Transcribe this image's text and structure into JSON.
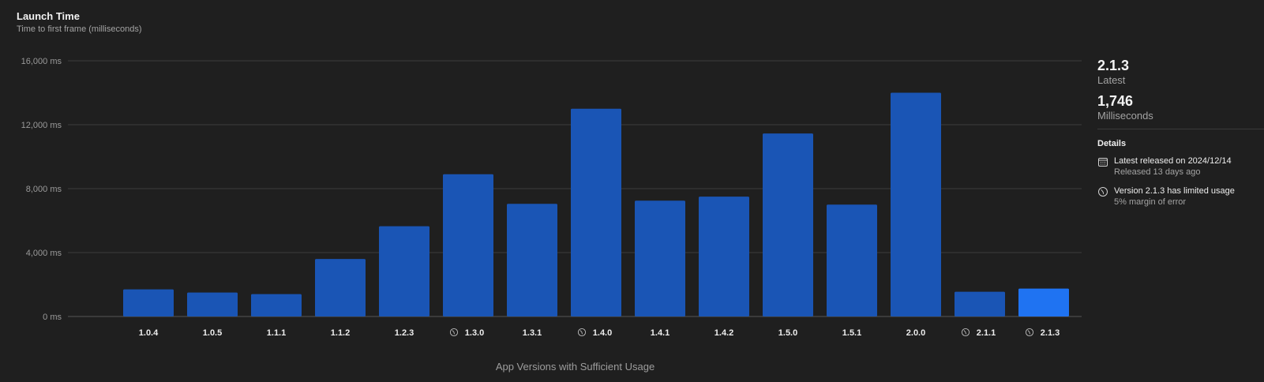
{
  "header": {
    "title": "Launch Time",
    "subtitle": "Time to first frame (milliseconds)"
  },
  "summary": {
    "version": "2.1.3",
    "version_label": "Latest",
    "value": "1,746",
    "value_label": "Milliseconds"
  },
  "details": {
    "heading": "Details",
    "items": [
      {
        "icon": "calendar-icon",
        "title": "Latest released on 2024/12/14",
        "subtitle": "Released 13 days ago"
      },
      {
        "icon": "limited-usage-icon",
        "title": "Version 2.1.3 has limited usage",
        "subtitle": "5% margin of error"
      }
    ]
  },
  "colors": {
    "bar": "#1a55b5",
    "bar_highlight": "#1f73f2",
    "background": "#1f1f1f",
    "grid": "#3d3d3d"
  },
  "chart_data": {
    "type": "bar",
    "title": "Launch Time",
    "subtitle": "Time to first frame (milliseconds)",
    "xlabel": "App Versions with Sufficient Usage",
    "ylabel": "",
    "ylim": [
      0,
      16000
    ],
    "yticks": [
      0,
      4000,
      8000,
      12000,
      16000
    ],
    "ytick_labels": [
      "0 ms",
      "4,000 ms",
      "8,000 ms",
      "12,000 ms",
      "16,000 ms"
    ],
    "grid": true,
    "categories": [
      "1.0.4",
      "1.0.5",
      "1.1.1",
      "1.1.2",
      "1.2.3",
      "1.3.0",
      "1.3.1",
      "1.4.0",
      "1.4.1",
      "1.4.2",
      "1.5.0",
      "1.5.1",
      "2.0.0",
      "2.1.1",
      "2.1.3"
    ],
    "values": [
      1700,
      1500,
      1400,
      3600,
      5650,
      8900,
      7050,
      13000,
      7250,
      7500,
      11450,
      7000,
      14000,
      1550,
      1746
    ],
    "limited_usage": [
      "1.3.0",
      "1.4.0",
      "2.1.1",
      "2.1.3"
    ],
    "highlight": "2.1.3"
  }
}
